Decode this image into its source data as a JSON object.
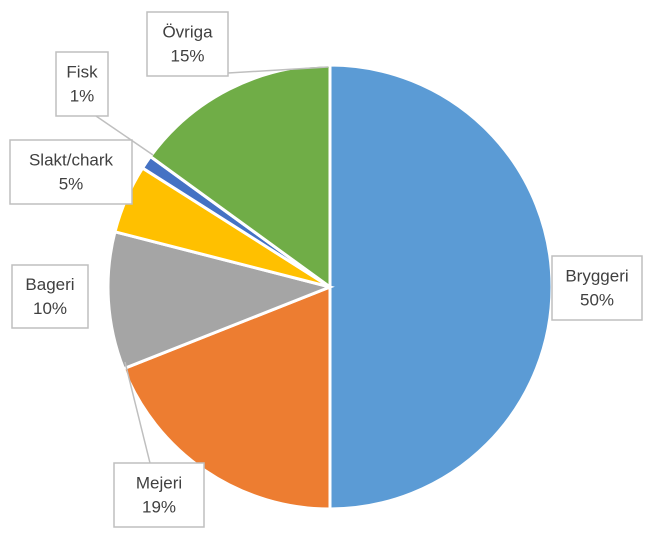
{
  "chart_data": {
    "type": "pie",
    "categories": [
      "Bryggeri",
      "Mejeri",
      "Bageri",
      "Slakt/chark",
      "Fisk",
      "Övriga"
    ],
    "values": [
      50,
      19,
      10,
      5,
      1,
      15
    ],
    "value_labels": [
      "50%",
      "19%",
      "10%",
      "5%",
      "1%",
      "15%"
    ],
    "colors": [
      "#5b9bd5",
      "#ed7d31",
      "#a5a5a5",
      "#ffc000",
      "#4472c4",
      "#70ad47"
    ]
  }
}
